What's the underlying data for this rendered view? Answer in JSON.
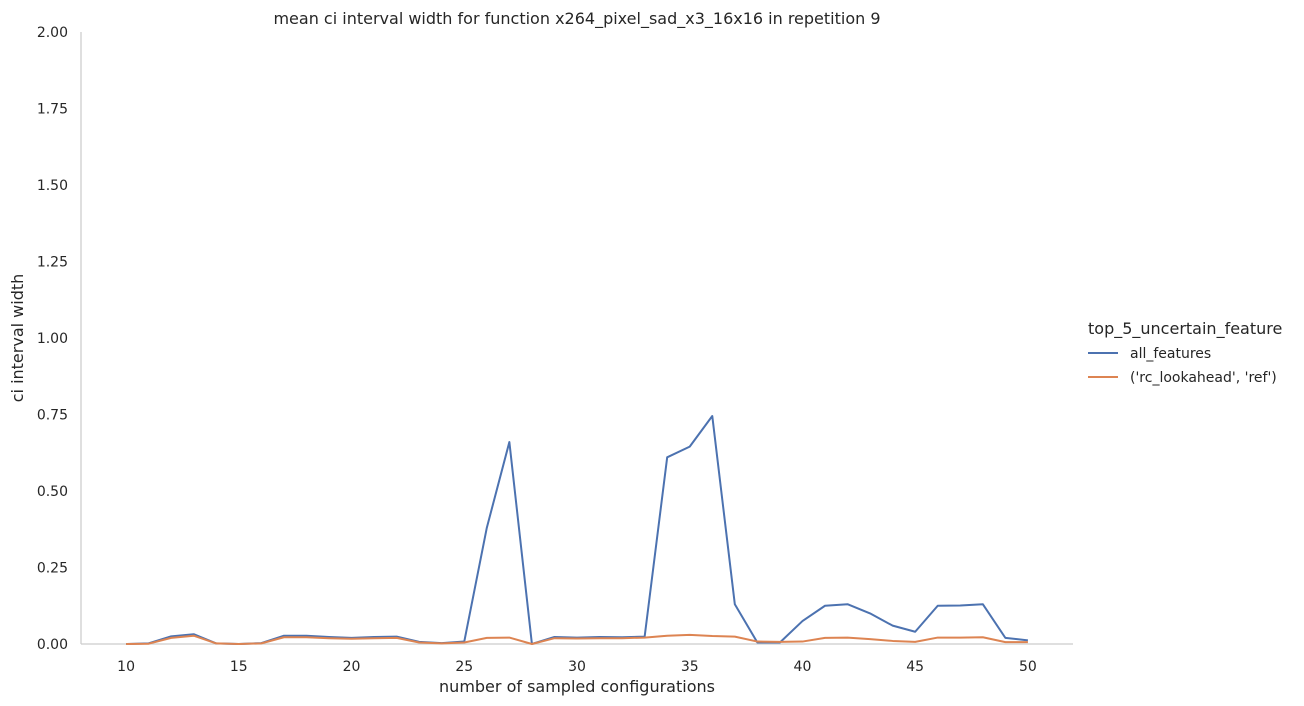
{
  "chart_data": {
    "type": "line",
    "title": "mean ci interval width for function x264_pixel_sad_x3_16x16 in repetition 9",
    "xlabel": "number of sampled configurations",
    "ylabel": "ci interval width",
    "xlim": [
      8,
      52
    ],
    "ylim": [
      0,
      2.0
    ],
    "xticks": [
      10,
      15,
      20,
      25,
      30,
      35,
      40,
      45,
      50
    ],
    "xtick_labels": [
      "10",
      "15",
      "20",
      "25",
      "30",
      "35",
      "40",
      "45",
      "50"
    ],
    "yticks": [
      0,
      0.25,
      0.5,
      0.75,
      1.0,
      1.25,
      1.5,
      1.75,
      2.0
    ],
    "ytick_labels": [
      "0.00",
      "0.25",
      "0.50",
      "0.75",
      "1.00",
      "1.25",
      "1.50",
      "1.75",
      "2.00"
    ],
    "grid": false,
    "legend_title": "top_5_uncertain_feature",
    "legend_position": "right",
    "x": [
      10,
      11,
      12,
      13,
      14,
      15,
      16,
      17,
      18,
      19,
      20,
      21,
      22,
      23,
      24,
      25,
      26,
      27,
      28,
      29,
      30,
      31,
      32,
      33,
      34,
      35,
      36,
      37,
      38,
      39,
      40,
      41,
      42,
      43,
      44,
      45,
      46,
      47,
      48,
      49,
      50
    ],
    "series": [
      {
        "name": "all_features",
        "color": "#4c72b0",
        "values": [
          0.0,
          0.002,
          0.025,
          0.032,
          0.002,
          0.0,
          0.003,
          0.027,
          0.027,
          0.023,
          0.02,
          0.023,
          0.024,
          0.007,
          0.003,
          0.008,
          0.38,
          0.66,
          0.0,
          0.023,
          0.021,
          0.023,
          0.022,
          0.024,
          0.61,
          0.645,
          0.745,
          0.13,
          0.005,
          0.005,
          0.075,
          0.125,
          0.13,
          0.1,
          0.06,
          0.04,
          0.125,
          0.126,
          0.13,
          0.02,
          0.012
        ]
      },
      {
        "name": "('rc_lookahead', 'ref')",
        "color": "#dd8452",
        "values": [
          0.0,
          0.001,
          0.02,
          0.027,
          0.002,
          0.0,
          0.002,
          0.022,
          0.022,
          0.019,
          0.017,
          0.019,
          0.02,
          0.005,
          0.002,
          0.005,
          0.02,
          0.021,
          0.0,
          0.019,
          0.018,
          0.019,
          0.019,
          0.021,
          0.027,
          0.03,
          0.026,
          0.024,
          0.008,
          0.007,
          0.008,
          0.02,
          0.021,
          0.016,
          0.01,
          0.007,
          0.021,
          0.021,
          0.022,
          0.006,
          0.006
        ]
      }
    ]
  }
}
